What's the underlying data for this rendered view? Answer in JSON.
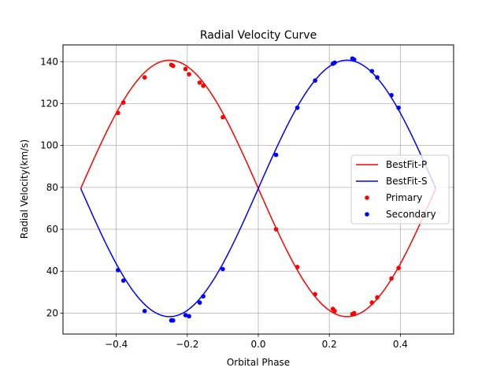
{
  "chart_data": {
    "type": "line",
    "title": "Radial Velocity Curve",
    "xlabel": "Orbital Phase",
    "ylabel": "Radial Velocity(km/s)",
    "xlim": [
      -0.55,
      0.55
    ],
    "ylim": [
      10,
      148
    ],
    "xticks": [
      -0.4,
      -0.2,
      0.0,
      0.2,
      0.4
    ],
    "xtick_labels": [
      "−0.4",
      "−0.2",
      "0.0",
      "0.2",
      "0.4"
    ],
    "yticks": [
      20,
      40,
      60,
      80,
      100,
      120,
      140
    ],
    "ytick_labels": [
      "20",
      "40",
      "60",
      "80",
      "100",
      "120",
      "140"
    ],
    "grid": true,
    "legend_position": "center-right",
    "fit": {
      "gamma": 79.5,
      "amplitude": 61.2,
      "phase_min": -0.5,
      "phase_max": 0.5
    },
    "series": [
      {
        "name": "BestFit-P",
        "kind": "line",
        "color": "#ff0000"
      },
      {
        "name": "BestFit-S",
        "kind": "line",
        "color": "#0000ff"
      },
      {
        "name": "Primary",
        "kind": "scatter",
        "color": "#ff0000",
        "x": [
          -0.395,
          -0.38,
          -0.32,
          -0.245,
          -0.24,
          -0.205,
          -0.195,
          -0.165,
          -0.155,
          -0.1,
          0.05,
          0.11,
          0.16,
          0.21,
          0.215,
          0.265,
          0.27,
          0.32,
          0.335,
          0.375,
          0.395
        ],
        "y": [
          115.5,
          120.5,
          132.5,
          138.5,
          138.0,
          136.5,
          134.0,
          130.0,
          128.5,
          113.5,
          60.0,
          42.0,
          29.0,
          22.0,
          21.0,
          19.5,
          20.0,
          25.0,
          27.5,
          36.5,
          41.5
        ]
      },
      {
        "name": "Secondary",
        "kind": "scatter",
        "color": "#0000ff",
        "x": [
          -0.395,
          -0.38,
          -0.32,
          -0.245,
          -0.24,
          -0.205,
          -0.195,
          -0.165,
          -0.155,
          -0.1,
          0.05,
          0.11,
          0.16,
          0.21,
          0.215,
          0.265,
          0.27,
          0.32,
          0.335,
          0.375,
          0.395
        ],
        "y": [
          40.5,
          35.5,
          21.0,
          16.5,
          16.5,
          19.0,
          18.5,
          25.0,
          28.0,
          41.0,
          95.5,
          118.0,
          131.0,
          139.0,
          139.5,
          141.5,
          141.0,
          135.5,
          132.5,
          124.0,
          118.0
        ]
      }
    ]
  }
}
